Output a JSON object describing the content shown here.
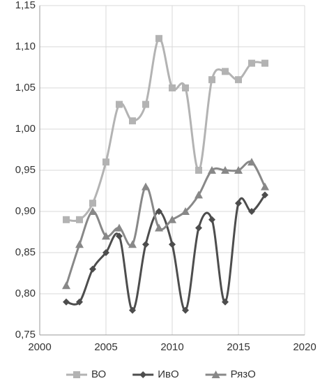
{
  "chart_data": {
    "type": "line",
    "x": [
      2002,
      2003,
      2004,
      2005,
      2006,
      2007,
      2008,
      2009,
      2010,
      2011,
      2012,
      2013,
      2014,
      2015,
      2016,
      2017
    ],
    "series": [
      {
        "name": "ВО",
        "color": "#b3b3b3",
        "marker": "square",
        "values": [
          0.89,
          0.89,
          0.91,
          0.96,
          1.03,
          1.01,
          1.03,
          1.11,
          1.05,
          1.05,
          0.95,
          1.06,
          1.07,
          1.06,
          1.08,
          1.08
        ]
      },
      {
        "name": "ИвО",
        "color": "#4d4d4d",
        "marker": "diamond",
        "values": [
          0.79,
          0.79,
          0.83,
          0.85,
          0.87,
          0.78,
          0.86,
          0.9,
          0.86,
          0.78,
          0.88,
          0.89,
          0.79,
          0.91,
          0.9,
          0.92
        ]
      },
      {
        "name": "РязО",
        "color": "#888888",
        "marker": "triangle",
        "values": [
          0.81,
          0.86,
          0.9,
          0.87,
          0.88,
          0.86,
          0.93,
          0.88,
          0.89,
          0.9,
          0.92,
          0.95,
          0.95,
          0.95,
          0.96,
          0.93
        ]
      }
    ],
    "xlim": [
      2000,
      2020
    ],
    "xticks": [
      2000,
      2005,
      2010,
      2015,
      2020
    ],
    "ylim": [
      0.75,
      1.15
    ],
    "yticks": [
      {
        "value": 0.75,
        "label": "0,75"
      },
      {
        "value": 0.8,
        "label": "0,80"
      },
      {
        "value": 0.85,
        "label": "0,85"
      },
      {
        "value": 0.9,
        "label": "0,90"
      },
      {
        "value": 0.95,
        "label": "0,95"
      },
      {
        "value": 1.0,
        "label": "1,00"
      },
      {
        "value": 1.05,
        "label": "1,05"
      },
      {
        "value": 1.1,
        "label": "1,10"
      },
      {
        "value": 1.15,
        "label": "1,15"
      }
    ],
    "grid": true,
    "smooth": true,
    "legend": "bottom"
  }
}
